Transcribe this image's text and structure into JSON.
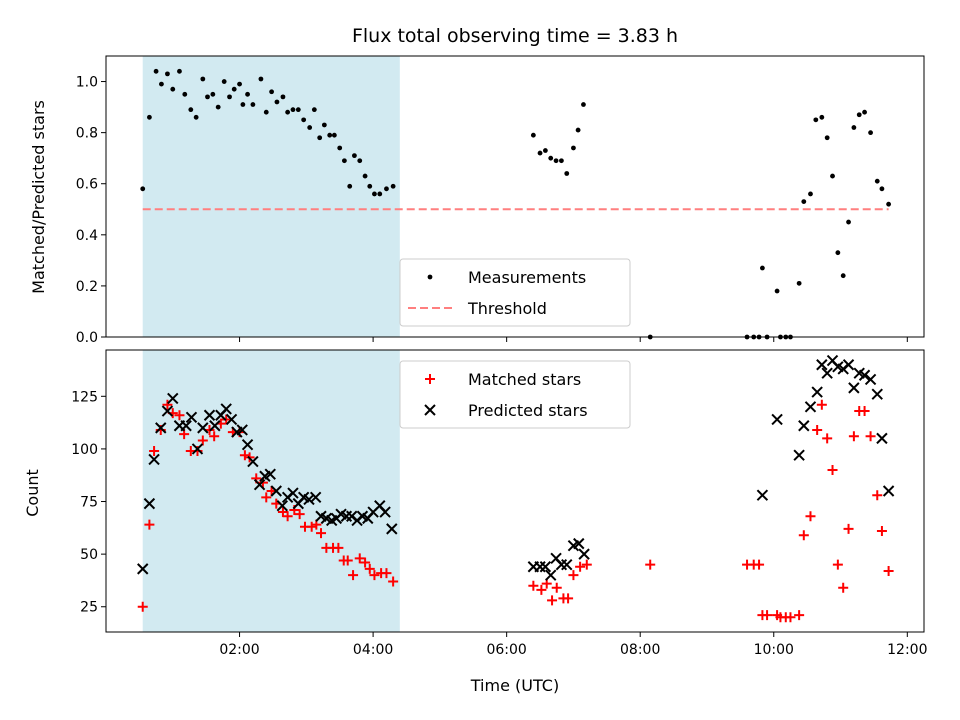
{
  "chart_data": [
    {
      "type": "scatter",
      "title": "Flux total observing time = 3.83 h",
      "ylabel": "Matched/Predicted stars",
      "xlabel": "",
      "xlim": [
        0.0,
        12.25
      ],
      "ylim": [
        0.0,
        1.1
      ],
      "x_ticks": [
        2,
        4,
        6,
        8,
        10,
        12
      ],
      "y_ticks": [
        0.0,
        0.2,
        0.4,
        0.6,
        0.8,
        1.0
      ],
      "y_tick_labels": [
        "0.0",
        "0.2",
        "0.4",
        "0.6",
        "0.8",
        "1.0"
      ],
      "shaded_span": [
        0.55,
        4.4
      ],
      "shade_color": "#add8e6",
      "legend_position": "lower center",
      "series": [
        {
          "name": "Measurements",
          "marker": "dot",
          "color": "#000000",
          "points": [
            [
              0.55,
              0.58
            ],
            [
              0.65,
              0.86
            ],
            [
              0.75,
              1.04
            ],
            [
              0.83,
              0.99
            ],
            [
              0.92,
              1.03
            ],
            [
              1.0,
              0.97
            ],
            [
              1.1,
              1.04
            ],
            [
              1.18,
              0.95
            ],
            [
              1.27,
              0.89
            ],
            [
              1.35,
              0.86
            ],
            [
              1.45,
              1.01
            ],
            [
              1.52,
              0.94
            ],
            [
              1.6,
              0.95
            ],
            [
              1.68,
              0.9
            ],
            [
              1.77,
              1.0
            ],
            [
              1.85,
              0.94
            ],
            [
              1.92,
              0.97
            ],
            [
              2.0,
              0.99
            ],
            [
              2.05,
              0.91
            ],
            [
              2.12,
              0.95
            ],
            [
              2.2,
              0.91
            ],
            [
              2.32,
              1.01
            ],
            [
              2.4,
              0.88
            ],
            [
              2.48,
              0.96
            ],
            [
              2.56,
              0.92
            ],
            [
              2.65,
              0.94
            ],
            [
              2.72,
              0.88
            ],
            [
              2.8,
              0.89
            ],
            [
              2.88,
              0.89
            ],
            [
              2.96,
              0.85
            ],
            [
              3.05,
              0.82
            ],
            [
              3.12,
              0.89
            ],
            [
              3.2,
              0.78
            ],
            [
              3.27,
              0.83
            ],
            [
              3.35,
              0.79
            ],
            [
              3.42,
              0.79
            ],
            [
              3.5,
              0.74
            ],
            [
              3.57,
              0.69
            ],
            [
              3.65,
              0.59
            ],
            [
              3.72,
              0.71
            ],
            [
              3.8,
              0.69
            ],
            [
              3.88,
              0.63
            ],
            [
              3.95,
              0.59
            ],
            [
              4.02,
              0.56
            ],
            [
              4.1,
              0.56
            ],
            [
              4.2,
              0.58
            ],
            [
              4.3,
              0.59
            ],
            [
              6.4,
              0.79
            ],
            [
              6.5,
              0.72
            ],
            [
              6.58,
              0.73
            ],
            [
              6.66,
              0.7
            ],
            [
              6.74,
              0.69
            ],
            [
              6.82,
              0.69
            ],
            [
              6.9,
              0.64
            ],
            [
              7.0,
              0.74
            ],
            [
              7.07,
              0.81
            ],
            [
              7.15,
              0.91
            ],
            [
              8.15,
              0.0
            ],
            [
              9.6,
              0.0
            ],
            [
              9.7,
              0.0
            ],
            [
              9.78,
              0.0
            ],
            [
              9.83,
              0.27
            ],
            [
              9.9,
              0.0
            ],
            [
              10.05,
              0.18
            ],
            [
              10.1,
              0.0
            ],
            [
              10.18,
              0.0
            ],
            [
              10.25,
              0.0
            ],
            [
              10.38,
              0.21
            ],
            [
              10.45,
              0.53
            ],
            [
              10.55,
              0.56
            ],
            [
              10.63,
              0.85
            ],
            [
              10.72,
              0.86
            ],
            [
              10.8,
              0.78
            ],
            [
              10.88,
              0.63
            ],
            [
              10.96,
              0.33
            ],
            [
              11.04,
              0.24
            ],
            [
              11.12,
              0.45
            ],
            [
              11.2,
              0.82
            ],
            [
              11.28,
              0.87
            ],
            [
              11.36,
              0.88
            ],
            [
              11.45,
              0.8
            ],
            [
              11.55,
              0.61
            ],
            [
              11.62,
              0.58
            ],
            [
              11.72,
              0.52
            ]
          ]
        },
        {
          "name": "Threshold",
          "marker": "dashed-line",
          "color": "#ff7f7f",
          "points": [
            [
              0.55,
              0.5
            ],
            [
              11.72,
              0.5
            ]
          ]
        }
      ]
    },
    {
      "type": "scatter",
      "title": "",
      "xlabel": "Time (UTC)",
      "ylabel": "Count",
      "xlim": [
        0.0,
        12.25
      ],
      "ylim": [
        13.0,
        147.0
      ],
      "x_ticks": [
        2,
        4,
        6,
        8,
        10,
        12
      ],
      "x_tick_labels": [
        "02:00",
        "04:00",
        "06:00",
        "08:00",
        "10:00",
        "12:00"
      ],
      "y_ticks": [
        25,
        50,
        75,
        100,
        125
      ],
      "y_tick_labels": [
        "25",
        "50",
        "75",
        "100",
        "125"
      ],
      "shaded_span": [
        0.55,
        4.4
      ],
      "shade_color": "#add8e6",
      "legend_position": "upper center",
      "series": [
        {
          "name": "Matched stars",
          "marker": "plus",
          "color": "#ff0000",
          "points": [
            [
              0.55,
              25
            ],
            [
              0.65,
              64
            ],
            [
              0.72,
              99
            ],
            [
              0.82,
              109
            ],
            [
              0.92,
              121
            ],
            [
              1.0,
              117
            ],
            [
              1.1,
              116
            ],
            [
              1.17,
              107
            ],
            [
              1.27,
              99
            ],
            [
              1.37,
              99
            ],
            [
              1.45,
              104
            ],
            [
              1.55,
              109
            ],
            [
              1.62,
              106
            ],
            [
              1.72,
              112
            ],
            [
              1.8,
              114
            ],
            [
              1.9,
              108
            ],
            [
              2.0,
              108
            ],
            [
              2.08,
              97
            ],
            [
              2.15,
              96
            ],
            [
              2.25,
              86
            ],
            [
              2.35,
              84
            ],
            [
              2.4,
              77
            ],
            [
              2.48,
              80
            ],
            [
              2.55,
              74
            ],
            [
              2.65,
              70
            ],
            [
              2.72,
              68
            ],
            [
              2.82,
              71
            ],
            [
              2.9,
              69
            ],
            [
              2.98,
              63
            ],
            [
              3.08,
              63
            ],
            [
              3.15,
              64
            ],
            [
              3.22,
              60
            ],
            [
              3.3,
              53
            ],
            [
              3.4,
              53
            ],
            [
              3.48,
              53
            ],
            [
              3.56,
              47
            ],
            [
              3.62,
              47
            ],
            [
              3.7,
              40
            ],
            [
              3.8,
              48
            ],
            [
              3.88,
              46
            ],
            [
              3.95,
              43
            ],
            [
              4.02,
              40
            ],
            [
              4.12,
              41
            ],
            [
              4.2,
              41
            ],
            [
              4.3,
              37
            ],
            [
              6.4,
              35
            ],
            [
              6.52,
              33
            ],
            [
              6.6,
              36
            ],
            [
              6.68,
              28
            ],
            [
              6.75,
              34
            ],
            [
              6.85,
              29
            ],
            [
              6.92,
              29
            ],
            [
              7.0,
              40
            ],
            [
              7.1,
              44
            ],
            [
              7.2,
              45
            ],
            [
              8.15,
              45
            ],
            [
              9.6,
              45
            ],
            [
              9.7,
              45
            ],
            [
              9.78,
              45
            ],
            [
              9.83,
              21
            ],
            [
              9.9,
              21
            ],
            [
              10.05,
              21
            ],
            [
              10.1,
              20
            ],
            [
              10.18,
              20
            ],
            [
              10.25,
              20
            ],
            [
              10.38,
              21
            ],
            [
              10.45,
              59
            ],
            [
              10.55,
              68
            ],
            [
              10.65,
              109
            ],
            [
              10.72,
              121
            ],
            [
              10.8,
              105
            ],
            [
              10.88,
              90
            ],
            [
              10.96,
              45
            ],
            [
              11.04,
              34
            ],
            [
              11.12,
              62
            ],
            [
              11.2,
              106
            ],
            [
              11.28,
              118
            ],
            [
              11.36,
              118
            ],
            [
              11.45,
              106
            ],
            [
              11.55,
              78
            ],
            [
              11.62,
              61
            ],
            [
              11.72,
              42
            ]
          ]
        },
        {
          "name": "Predicted stars",
          "marker": "x",
          "color": "#000000",
          "points": [
            [
              0.55,
              43
            ],
            [
              0.65,
              74
            ],
            [
              0.72,
              95
            ],
            [
              0.82,
              110
            ],
            [
              0.92,
              118
            ],
            [
              1.0,
              124
            ],
            [
              1.1,
              111
            ],
            [
              1.2,
              111
            ],
            [
              1.28,
              115
            ],
            [
              1.37,
              100
            ],
            [
              1.45,
              110
            ],
            [
              1.55,
              116
            ],
            [
              1.63,
              111
            ],
            [
              1.72,
              116
            ],
            [
              1.8,
              119
            ],
            [
              1.88,
              114
            ],
            [
              1.96,
              108
            ],
            [
              2.04,
              109
            ],
            [
              2.12,
              102
            ],
            [
              2.2,
              94
            ],
            [
              2.3,
              83
            ],
            [
              2.38,
              87
            ],
            [
              2.46,
              88
            ],
            [
              2.55,
              80
            ],
            [
              2.64,
              73
            ],
            [
              2.72,
              77
            ],
            [
              2.8,
              79
            ],
            [
              2.88,
              74
            ],
            [
              2.96,
              77
            ],
            [
              3.04,
              76
            ],
            [
              3.14,
              77
            ],
            [
              3.22,
              68
            ],
            [
              3.3,
              67
            ],
            [
              3.38,
              66
            ],
            [
              3.45,
              67
            ],
            [
              3.52,
              69
            ],
            [
              3.6,
              68
            ],
            [
              3.68,
              68
            ],
            [
              3.76,
              66
            ],
            [
              3.84,
              68
            ],
            [
              3.92,
              67
            ],
            [
              4.0,
              70
            ],
            [
              4.1,
              73
            ],
            [
              4.18,
              70
            ],
            [
              4.28,
              62
            ],
            [
              6.4,
              44
            ],
            [
              6.5,
              44
            ],
            [
              6.58,
              44
            ],
            [
              6.66,
              40
            ],
            [
              6.74,
              48
            ],
            [
              6.82,
              45
            ],
            [
              6.9,
              45
            ],
            [
              7.0,
              54
            ],
            [
              7.08,
              55
            ],
            [
              7.16,
              50
            ],
            [
              9.83,
              78
            ],
            [
              10.05,
              114
            ],
            [
              10.38,
              97
            ],
            [
              10.45,
              111
            ],
            [
              10.55,
              120
            ],
            [
              10.65,
              127
            ],
            [
              10.72,
              140
            ],
            [
              10.8,
              136
            ],
            [
              10.88,
              142
            ],
            [
              10.96,
              139
            ],
            [
              11.04,
              138
            ],
            [
              11.12,
              140
            ],
            [
              11.2,
              129
            ],
            [
              11.28,
              136
            ],
            [
              11.36,
              135
            ],
            [
              11.45,
              133
            ],
            [
              11.55,
              126
            ],
            [
              11.62,
              105
            ],
            [
              11.72,
              80
            ]
          ]
        }
      ]
    }
  ]
}
